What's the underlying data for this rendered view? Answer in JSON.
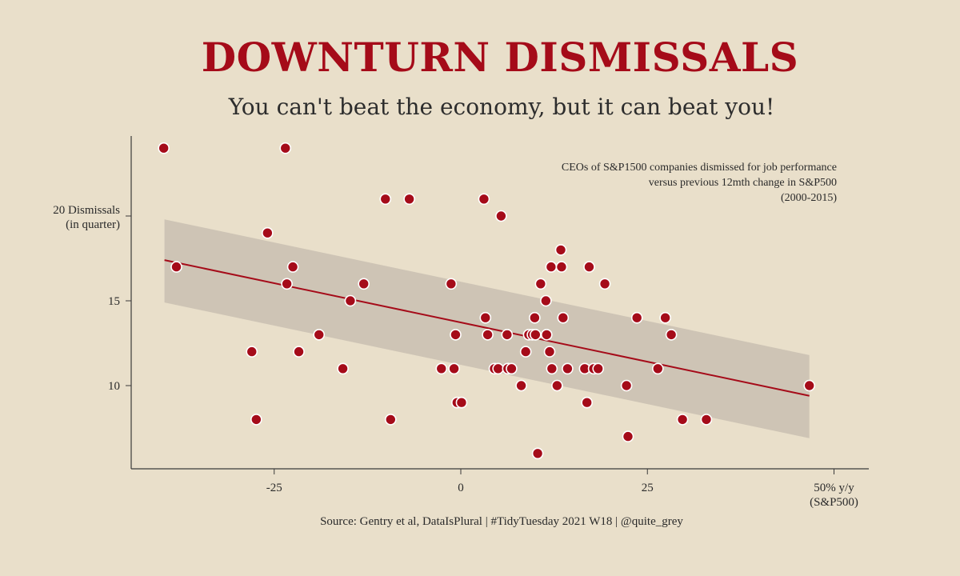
{
  "title": "DOWNTURN DISMISSALS",
  "subtitle": "You can't beat the economy, but it can beat you!",
  "caption": "Source: Gentry et al, DataIsPlural  | #TidyTuesday 2021 W18 | @quite_grey",
  "colors": {
    "background": "#e9dfca",
    "accent": "#a50b19",
    "band": "#c9bfb2",
    "axis": "#3a3a3a"
  },
  "chart_data": {
    "type": "scatter",
    "title": "DOWNTURN DISMISSALS",
    "subtitle": "You can't beat the economy, but it can beat you!",
    "annotation": [
      "CEOs of S&P1500 companies dismissed for job performance",
      "versus previous 12mth change in S&P500",
      "(2000-2015)"
    ],
    "xlabel": [
      "50% y/y",
      "(S&P500)"
    ],
    "ylabel": [
      "20 Dismissals",
      "(in quarter)"
    ],
    "xlim": [
      -44,
      55
    ],
    "ylim": [
      5,
      25
    ],
    "x_ticks": [
      {
        "value": -25,
        "label": "-25"
      },
      {
        "value": 0,
        "label": "0"
      },
      {
        "value": 25,
        "label": "25"
      }
    ],
    "y_ticks": [
      {
        "value": 10,
        "label": "10"
      },
      {
        "value": 15,
        "label": "15"
      }
    ],
    "grid": false,
    "trend": {
      "x": [
        -39.7,
        46.7
      ],
      "y": [
        17.4,
        9.4
      ],
      "ci_upper": [
        19.8,
        11.8
      ],
      "ci_lower": [
        14.9,
        6.9
      ]
    },
    "points": [
      {
        "x": -39.8,
        "y": 24
      },
      {
        "x": -38.1,
        "y": 17
      },
      {
        "x": -28.0,
        "y": 12
      },
      {
        "x": -27.4,
        "y": 8
      },
      {
        "x": -25.9,
        "y": 19
      },
      {
        "x": -23.5,
        "y": 24
      },
      {
        "x": -23.3,
        "y": 16
      },
      {
        "x": -22.5,
        "y": 17
      },
      {
        "x": -21.7,
        "y": 12
      },
      {
        "x": -19.0,
        "y": 13
      },
      {
        "x": -15.8,
        "y": 11
      },
      {
        "x": -14.8,
        "y": 15
      },
      {
        "x": -13.0,
        "y": 16
      },
      {
        "x": -10.1,
        "y": 21
      },
      {
        "x": -9.4,
        "y": 8
      },
      {
        "x": -6.9,
        "y": 21
      },
      {
        "x": -2.6,
        "y": 11
      },
      {
        "x": -1.3,
        "y": 16
      },
      {
        "x": -0.9,
        "y": 11
      },
      {
        "x": -0.7,
        "y": 13
      },
      {
        "x": -0.5,
        "y": 9
      },
      {
        "x": 0.1,
        "y": 9
      },
      {
        "x": 3.1,
        "y": 21
      },
      {
        "x": 3.3,
        "y": 14
      },
      {
        "x": 3.6,
        "y": 13
      },
      {
        "x": 4.5,
        "y": 11
      },
      {
        "x": 5.0,
        "y": 11
      },
      {
        "x": 5.4,
        "y": 20
      },
      {
        "x": 6.2,
        "y": 13
      },
      {
        "x": 6.3,
        "y": 11
      },
      {
        "x": 6.8,
        "y": 11
      },
      {
        "x": 8.1,
        "y": 10
      },
      {
        "x": 8.7,
        "y": 12
      },
      {
        "x": 9.1,
        "y": 13
      },
      {
        "x": 9.6,
        "y": 13
      },
      {
        "x": 9.9,
        "y": 14
      },
      {
        "x": 10.0,
        "y": 13
      },
      {
        "x": 10.3,
        "y": 6
      },
      {
        "x": 10.7,
        "y": 16
      },
      {
        "x": 11.4,
        "y": 15
      },
      {
        "x": 11.5,
        "y": 13
      },
      {
        "x": 11.9,
        "y": 12
      },
      {
        "x": 12.1,
        "y": 17
      },
      {
        "x": 12.2,
        "y": 11
      },
      {
        "x": 12.9,
        "y": 10
      },
      {
        "x": 13.4,
        "y": 18
      },
      {
        "x": 13.5,
        "y": 17
      },
      {
        "x": 13.7,
        "y": 14
      },
      {
        "x": 14.3,
        "y": 11
      },
      {
        "x": 16.6,
        "y": 11
      },
      {
        "x": 16.9,
        "y": 9
      },
      {
        "x": 17.2,
        "y": 17
      },
      {
        "x": 17.8,
        "y": 11
      },
      {
        "x": 18.4,
        "y": 11
      },
      {
        "x": 19.3,
        "y": 16
      },
      {
        "x": 22.2,
        "y": 10
      },
      {
        "x": 22.4,
        "y": 7
      },
      {
        "x": 23.6,
        "y": 14
      },
      {
        "x": 26.4,
        "y": 11
      },
      {
        "x": 27.4,
        "y": 14
      },
      {
        "x": 28.2,
        "y": 13
      },
      {
        "x": 29.7,
        "y": 8
      },
      {
        "x": 32.9,
        "y": 8
      },
      {
        "x": 46.7,
        "y": 10
      }
    ]
  }
}
